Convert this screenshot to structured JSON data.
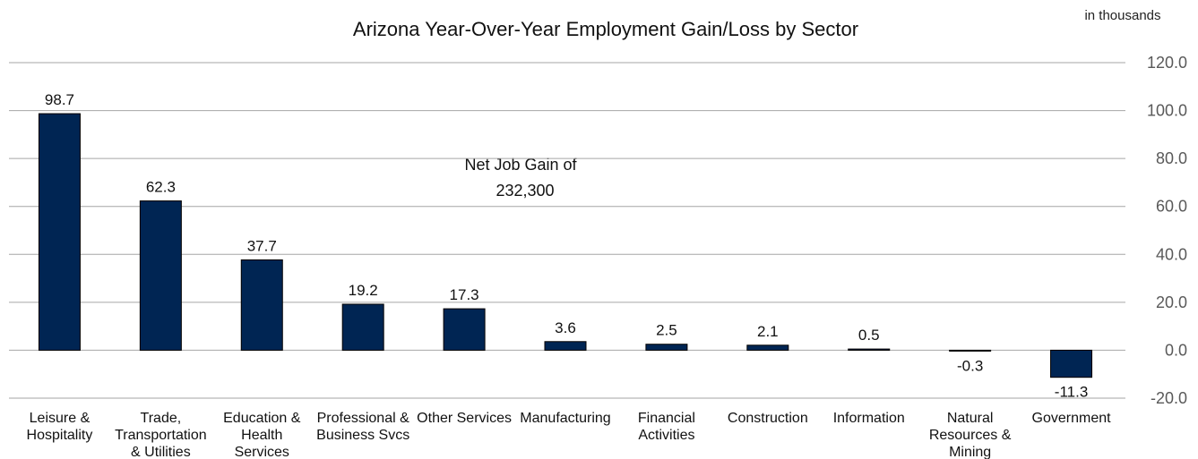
{
  "chart_data": {
    "type": "bar",
    "title": "Arizona Year-Over-Year Employment Gain/Loss by Sector",
    "units_note": "in thousands",
    "annotation": [
      "Net Job Gain of",
      "232,300"
    ],
    "categories": [
      [
        "Leisure &",
        "Hospitality"
      ],
      [
        "Trade,",
        "Transportation",
        "& Utilities"
      ],
      [
        "Education &",
        "Health",
        "Services"
      ],
      [
        "Professional &",
        "Business Svcs"
      ],
      [
        "Other Services"
      ],
      [
        "Manufacturing"
      ],
      [
        "Financial",
        "Activities"
      ],
      [
        "Construction"
      ],
      [
        "Information"
      ],
      [
        "Natural",
        "Resources &",
        "Mining"
      ],
      [
        "Government"
      ]
    ],
    "values": [
      98.7,
      62.3,
      37.7,
      19.2,
      17.3,
      3.6,
      2.5,
      2.1,
      0.5,
      -0.3,
      -11.3
    ],
    "value_labels": [
      "98.7",
      "62.3",
      "37.7",
      "19.2",
      "17.3",
      "3.6",
      "2.5",
      "2.1",
      "0.5",
      "-0.3",
      "-11.3"
    ],
    "yticks": [
      "120.0",
      "100.0",
      "80.0",
      "60.0",
      "40.0",
      "20.0",
      "0.0",
      "-20.0"
    ],
    "ytick_values": [
      120,
      100,
      80,
      60,
      40,
      20,
      0,
      -20
    ],
    "ylim": [
      -20,
      120
    ],
    "y_axis_side": "right",
    "grid": true,
    "bar_color": "#002553",
    "grid_color": "#a6a6a6"
  }
}
